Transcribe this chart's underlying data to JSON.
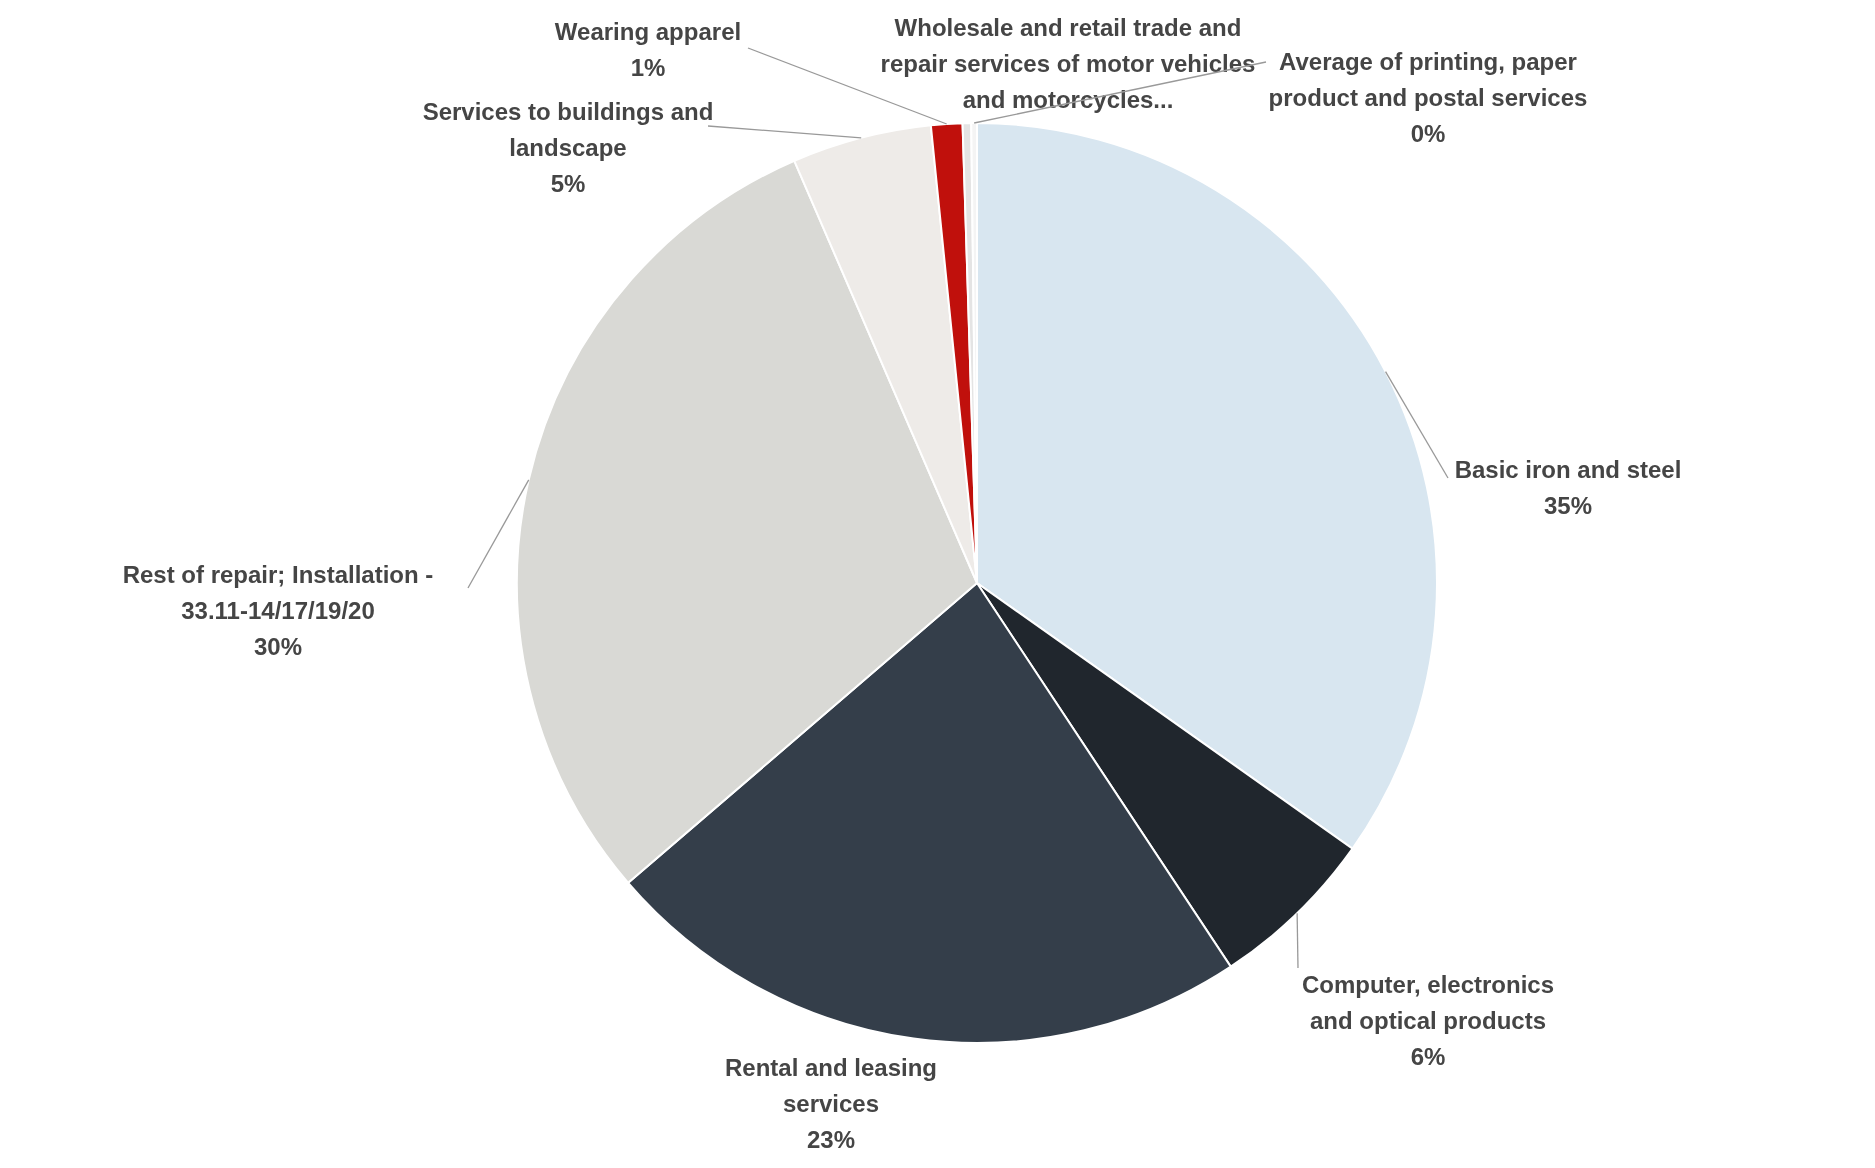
{
  "chart_data": {
    "type": "pie",
    "categories": [
      "Basic iron and steel",
      "Computer, electronics and optical products",
      "Rental and leasing services",
      "Rest of repair; Installation - 33.11-14/17/19/20",
      "Services to buildings and landscape",
      "Wearing apparel",
      "Wholesale and retail trade and repair services of motor vehicles and motorcycles...",
      "Average of printing, paper product and postal services"
    ],
    "values": [
      34.8,
      5.9,
      23,
      29.8,
      4.9,
      1.1,
      0.3,
      0.2
    ],
    "value_labels": [
      "35%",
      "6%",
      "23%",
      "30%",
      "5%",
      "1%",
      null,
      "0%"
    ],
    "colors": [
      "#d8e6f0",
      "#20262d",
      "#343e4a",
      "#d9d9d5",
      "#eeebe8",
      "#c0100c",
      "#e4e4e4",
      "#f4f4f4"
    ]
  }
}
